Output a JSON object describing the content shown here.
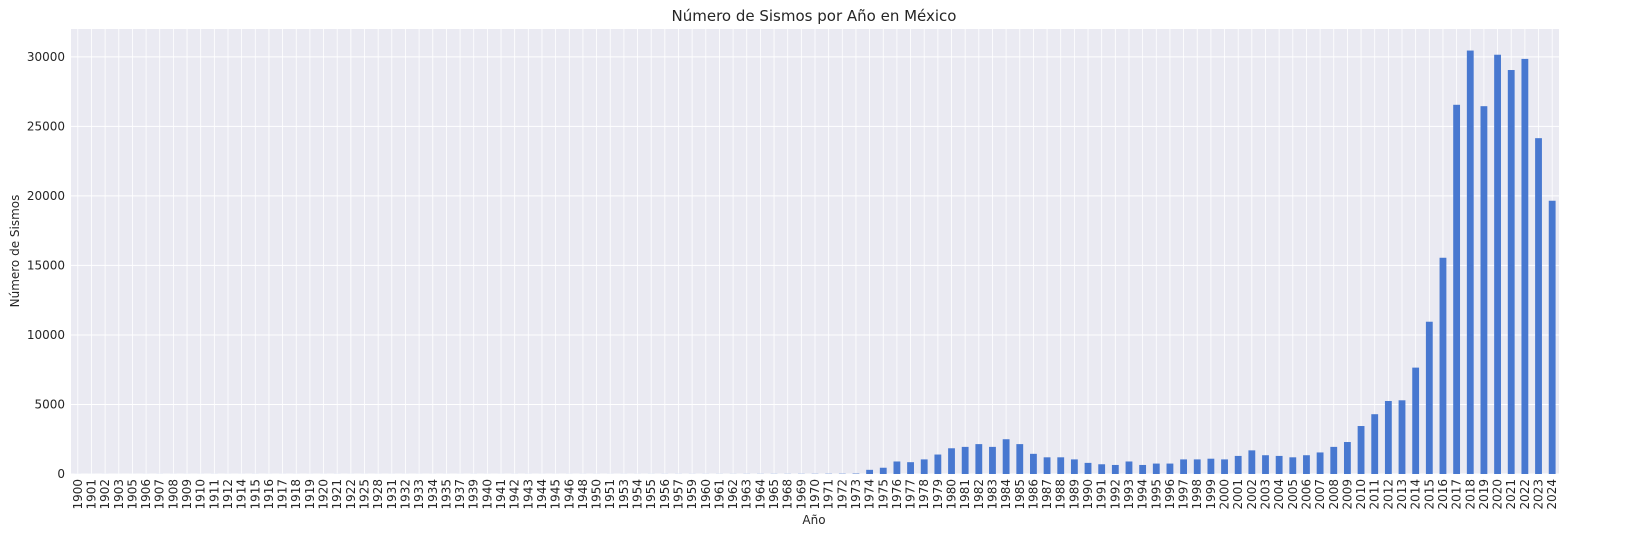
{
  "chart_data": {
    "type": "bar",
    "title": "Número de Sismos por Año en México",
    "xlabel": "Año",
    "ylabel": "Número de Sismos",
    "ylim": [
      0,
      32000
    ],
    "yticks": [
      0,
      5000,
      10000,
      15000,
      20000,
      25000,
      30000
    ],
    "grid": true,
    "legend": "none",
    "colors": {
      "bar": "#4878d0",
      "background": "#eaeaf2",
      "grid": "#ffffff"
    },
    "categories": [
      "1900",
      "1901",
      "1902",
      "1903",
      "1905",
      "1906",
      "1907",
      "1908",
      "1909",
      "1910",
      "1911",
      "1912",
      "1914",
      "1915",
      "1916",
      "1917",
      "1918",
      "1919",
      "1920",
      "1921",
      "1922",
      "1925",
      "1928",
      "1931",
      "1932",
      "1933",
      "1934",
      "1935",
      "1937",
      "1939",
      "1940",
      "1941",
      "1942",
      "1943",
      "1944",
      "1945",
      "1946",
      "1948",
      "1950",
      "1951",
      "1953",
      "1954",
      "1955",
      "1956",
      "1957",
      "1959",
      "1960",
      "1961",
      "1962",
      "1963",
      "1964",
      "1965",
      "1968",
      "1969",
      "1970",
      "1971",
      "1972",
      "1973",
      "1974",
      "1975",
      "1976",
      "1977",
      "1978",
      "1979",
      "1980",
      "1981",
      "1982",
      "1983",
      "1984",
      "1985",
      "1986",
      "1987",
      "1988",
      "1989",
      "1990",
      "1991",
      "1992",
      "1993",
      "1994",
      "1995",
      "1996",
      "1997",
      "1998",
      "1999",
      "2000",
      "2001",
      "2002",
      "2003",
      "2004",
      "2005",
      "2006",
      "2007",
      "2008",
      "2009",
      "2010",
      "2011",
      "2012",
      "2013",
      "2014",
      "2015",
      "2016",
      "2017",
      "2018",
      "2019",
      "2020",
      "2021",
      "2022",
      "2023",
      "2024"
    ],
    "values": [
      2,
      1,
      2,
      1,
      1,
      2,
      3,
      2,
      2,
      2,
      3,
      2,
      2,
      3,
      2,
      2,
      2,
      2,
      2,
      3,
      2,
      2,
      2,
      2,
      2,
      2,
      2,
      2,
      2,
      3,
      2,
      2,
      3,
      3,
      2,
      2,
      3,
      3,
      3,
      3,
      3,
      3,
      4,
      5,
      5,
      5,
      5,
      6,
      6,
      8,
      9,
      10,
      10,
      12,
      14,
      18,
      20,
      30,
      300,
      450,
      900,
      850,
      1050,
      1400,
      1850,
      1950,
      2150,
      1950,
      2500,
      2150,
      1450,
      1200,
      1200,
      1050,
      800,
      700,
      650,
      900,
      650,
      750,
      750,
      1050,
      1050,
      1100,
      1050,
      1300,
      1700,
      1350,
      1300,
      1200,
      1350,
      1550,
      1950,
      2300,
      3450,
      4300,
      5250,
      5300,
      7650,
      10950,
      15550,
      26550,
      30450,
      26450,
      30150,
      29050,
      29850,
      24150,
      19650
    ]
  }
}
